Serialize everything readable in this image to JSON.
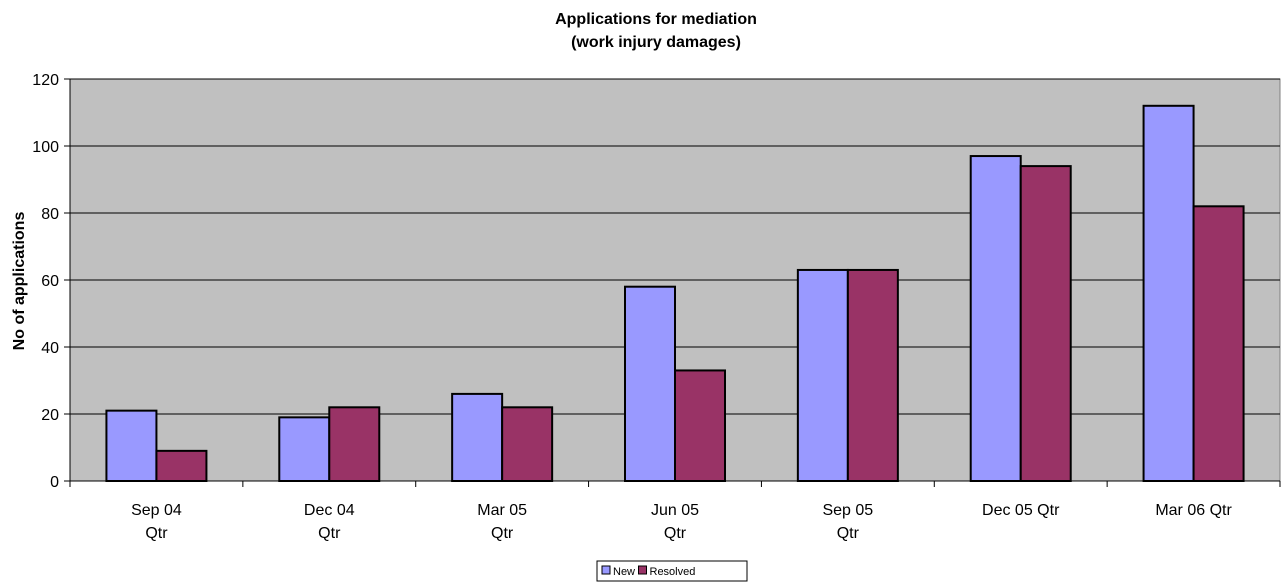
{
  "chart_data": {
    "type": "bar",
    "title": [
      "Applications for mediation",
      "(work injury damages)"
    ],
    "xlabel": "",
    "ylabel": "No of applications",
    "categories": [
      [
        "Sep 04",
        "Qtr"
      ],
      [
        "Dec 04",
        "Qtr"
      ],
      [
        "Mar 05",
        "Qtr"
      ],
      [
        "Jun 05",
        "Qtr"
      ],
      [
        "Sep 05",
        "Qtr"
      ],
      [
        "Dec 05 Qtr"
      ],
      [
        "Mar 06 Qtr"
      ]
    ],
    "series": [
      {
        "name": "New",
        "color": "#9999ff",
        "values": [
          21,
          19,
          26,
          58,
          63,
          97,
          112
        ]
      },
      {
        "name": "Resolved",
        "color": "#993366",
        "values": [
          9,
          22,
          22,
          33,
          63,
          94,
          82
        ]
      }
    ],
    "ylim": [
      0,
      120
    ],
    "yticks": [
      0,
      20,
      40,
      60,
      80,
      100,
      120
    ],
    "grid": true,
    "plot_background": "#c0c0c0",
    "legend_position": "bottom-center"
  }
}
